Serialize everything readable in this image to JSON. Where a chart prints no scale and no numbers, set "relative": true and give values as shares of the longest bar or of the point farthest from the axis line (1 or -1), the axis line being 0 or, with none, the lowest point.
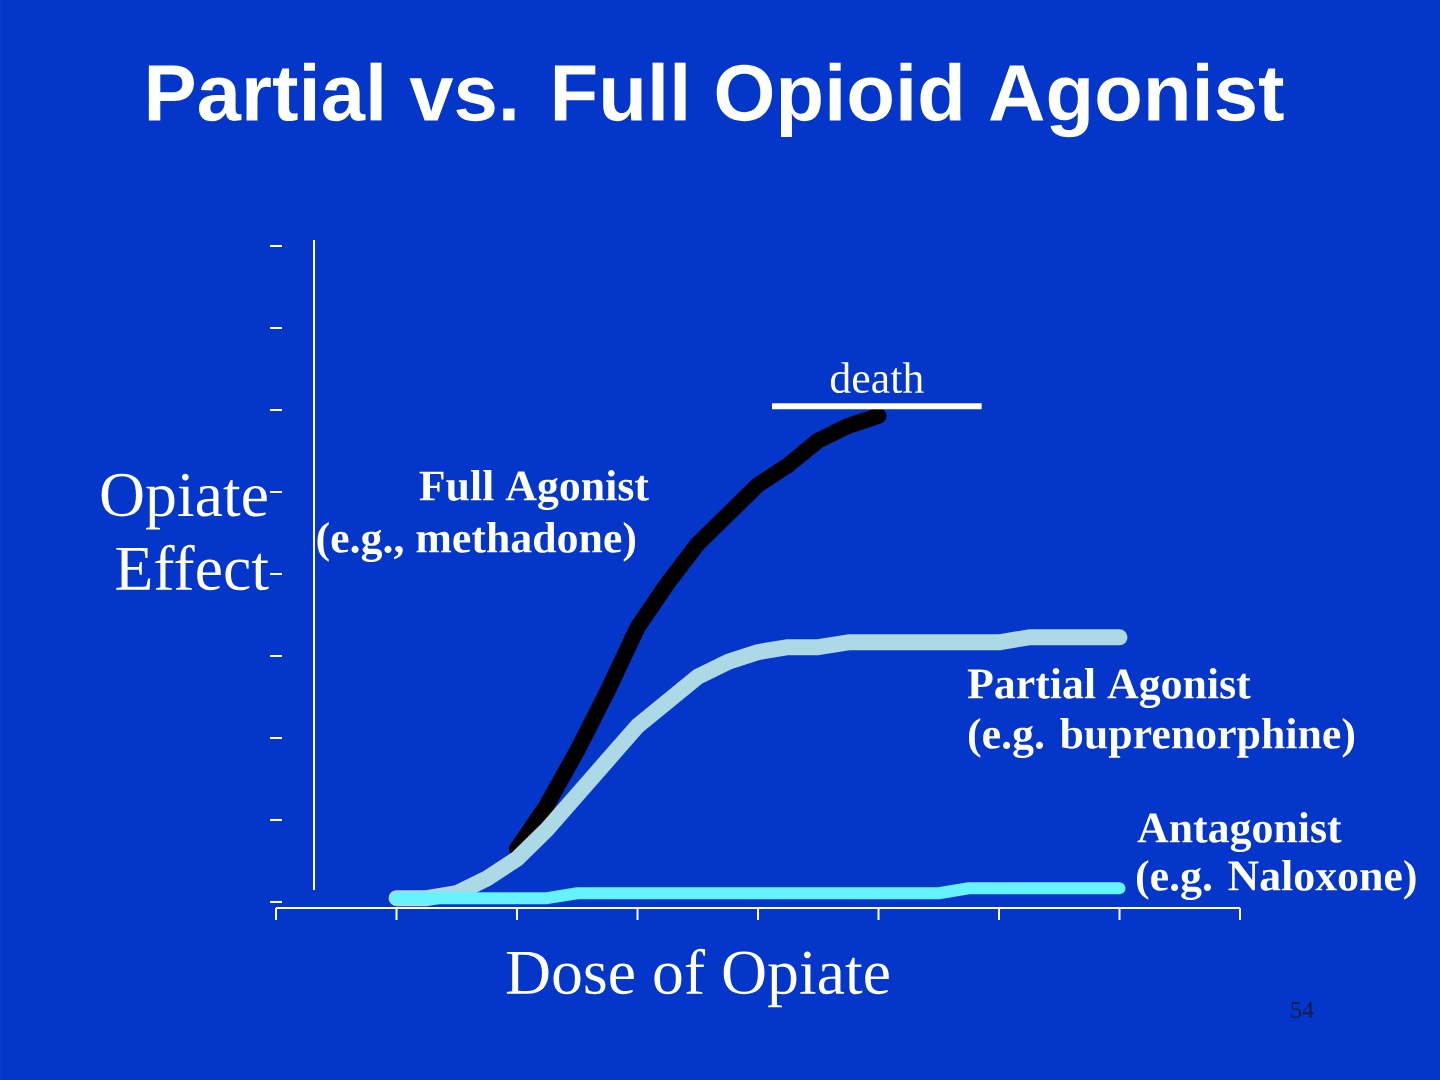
{
  "chart_data": {
    "type": "line",
    "title": "Partial vs. Full Opioid Agonist",
    "xlabel": "Dose of Opiate",
    "ylabel": "Opiate Effect",
    "relative": true,
    "categories": [
      null,
      null,
      null,
      null,
      null,
      null,
      null,
      null,
      null,
      null,
      null,
      null,
      null,
      null,
      null,
      null,
      null,
      null,
      null,
      null,
      null,
      null,
      null,
      null,
      null,
      null,
      null,
      null,
      null,
      null,
      null,
      null,
      null
    ],
    "series": [
      {
        "name": "Full Agonist",
        "color": "#000000",
        "values": [
          null,
          null,
          null,
          null,
          null,
          null,
          null,
          null,
          0.12,
          0.21,
          0.32,
          0.44,
          0.57,
          0.66,
          0.74,
          0.8,
          0.86,
          0.9,
          0.95,
          0.98,
          1.0,
          null,
          null,
          null,
          null,
          null,
          null,
          null,
          null,
          null,
          null,
          null,
          null
        ]
      },
      {
        "name": "Partial Agonist",
        "color": "#add8e6",
        "values": [
          null,
          null,
          null,
          null,
          0.02,
          0.02,
          0.03,
          0.06,
          0.1,
          0.16,
          0.23,
          0.3,
          0.37,
          0.42,
          0.47,
          0.5,
          0.52,
          0.53,
          0.53,
          0.54,
          0.54,
          0.54,
          0.54,
          0.54,
          0.54,
          0.55,
          0.55,
          0.55,
          0.55,
          null,
          null,
          null,
          null
        ]
      },
      {
        "name": "Antagonist",
        "color": "#66f2ff",
        "values": [
          null,
          null,
          null,
          null,
          0.02,
          0.02,
          0.02,
          0.02,
          0.02,
          0.02,
          0.03,
          0.03,
          0.03,
          0.03,
          0.03,
          0.03,
          0.03,
          0.03,
          0.03,
          0.03,
          0.03,
          0.03,
          0.03,
          0.04,
          0.04,
          0.04,
          0.04,
          0.04,
          0.04,
          null,
          null,
          null,
          null
        ]
      }
    ],
    "ref_lines": [
      {
        "axis": "y",
        "value": 1.02,
        "label": "death",
        "color": "#ffffff"
      }
    ],
    "annotations": [
      "(e.g., methadone)",
      "(e.g. buprenorphine)",
      "(e.g. Naloxone)",
      "54"
    ]
  }
}
